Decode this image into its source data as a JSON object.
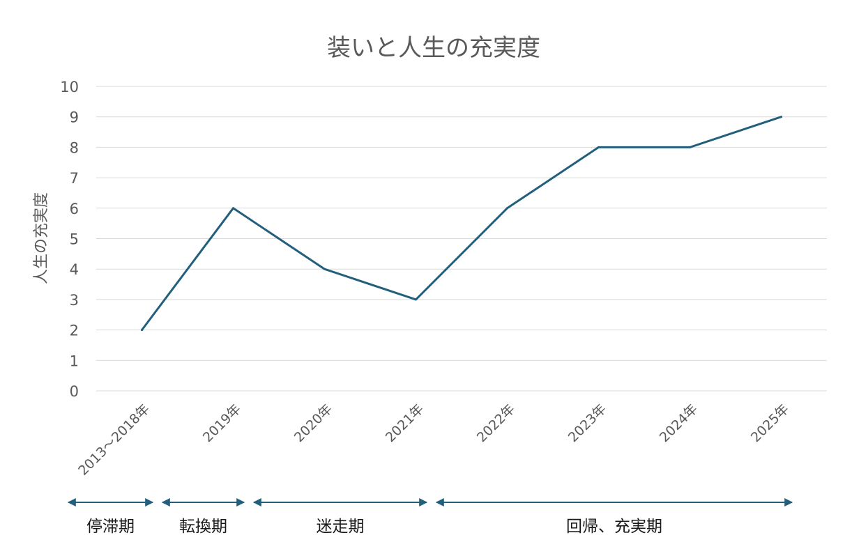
{
  "chart_data": {
    "type": "line",
    "title": "装いと人生の充実度",
    "xlabel": "",
    "ylabel": "人生の充実度",
    "ylim": [
      0,
      10
    ],
    "yticks": [
      "0",
      "1",
      "2",
      "3",
      "4",
      "5",
      "6",
      "7",
      "8",
      "9",
      "10"
    ],
    "categories": [
      "2013～2018年",
      "2019年",
      "2020年",
      "2021年",
      "2022年",
      "2023年",
      "2024年",
      "2025年"
    ],
    "series": [
      {
        "values": [
          2,
          6,
          4,
          3,
          6,
          8,
          8,
          9
        ]
      }
    ],
    "grid": true,
    "legend": "none",
    "colors": {
      "line": "#215f7d",
      "arrow": "#215f7d",
      "grid": "#d9d9d9",
      "text": "#595959"
    },
    "phases": [
      {
        "label": "停滞期",
        "from": "2013～2018年",
        "to": "2013～2018年"
      },
      {
        "label": "転換期",
        "from": "2019年",
        "to": "2019年"
      },
      {
        "label": "迷走期",
        "from": "2020年",
        "to": "2021年"
      },
      {
        "label": "回帰、充実期",
        "from": "2022年",
        "to": "2025年"
      }
    ]
  }
}
